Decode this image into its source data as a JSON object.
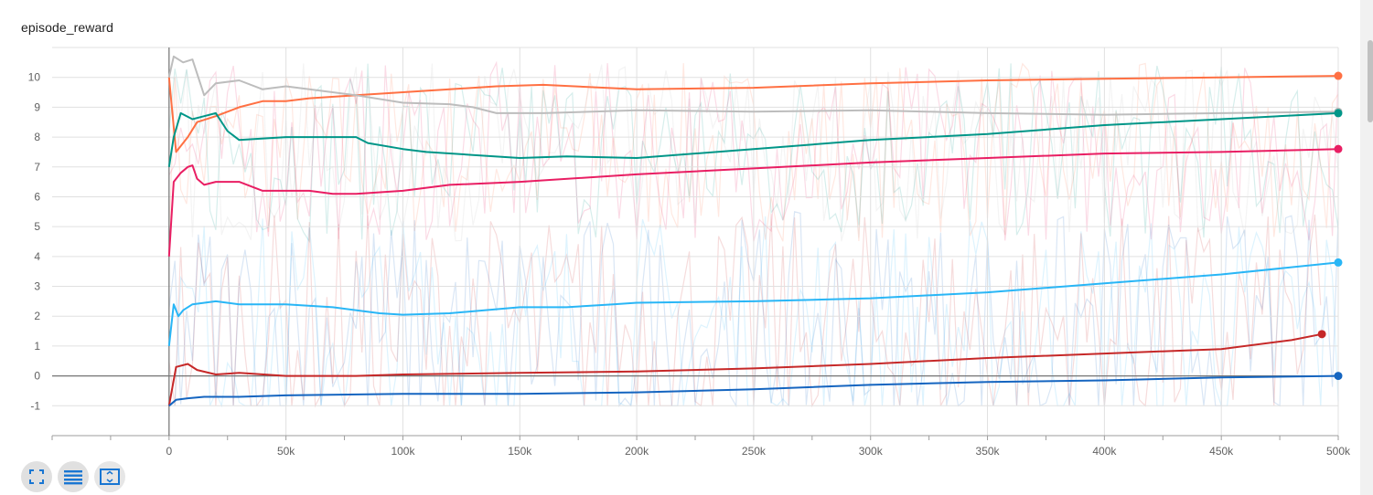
{
  "card": {
    "title": "episode_reward"
  },
  "toolbar": [
    {
      "name": "fullscreen-button",
      "icon": "expand-icon"
    },
    {
      "name": "toggle-log-button",
      "icon": "lines-icon"
    },
    {
      "name": "fit-domain-button",
      "icon": "fit-domain-icon"
    }
  ],
  "colors": {
    "axis": "#9e9e9e",
    "grid": "#e0e0e0",
    "tick": "#616161",
    "toolbar_icon": "#1976d2"
  },
  "chart_data": {
    "type": "line",
    "title": "episode_reward",
    "xlabel": "",
    "ylabel": "",
    "xlim": [
      -50000,
      500000
    ],
    "ylim": [
      -2,
      11
    ],
    "x_ticks": [
      0,
      50000,
      100000,
      150000,
      200000,
      250000,
      300000,
      350000,
      400000,
      450000,
      500000
    ],
    "x_tick_labels": [
      "0",
      "50k",
      "100k",
      "150k",
      "200k",
      "250k",
      "300k",
      "350k",
      "400k",
      "450k",
      "500k"
    ],
    "y_ticks": [
      -1,
      0,
      1,
      2,
      3,
      4,
      5,
      6,
      7,
      8,
      9,
      10
    ],
    "y_tick_labels": [
      "-1",
      "0",
      "1",
      "2",
      "3",
      "4",
      "5",
      "6",
      "7",
      "8",
      "9",
      "10"
    ],
    "grid": true,
    "legend": "none",
    "series": [
      {
        "color": "#ff7043",
        "x": [
          0,
          3000,
          8000,
          12000,
          20000,
          30000,
          40000,
          50000,
          60000,
          80000,
          100000,
          120000,
          140000,
          160000,
          200000,
          250000,
          300000,
          350000,
          400000,
          450000,
          500000
        ],
        "y": [
          10.0,
          7.5,
          8.0,
          8.5,
          8.7,
          9.0,
          9.2,
          9.2,
          9.3,
          9.4,
          9.5,
          9.6,
          9.7,
          9.75,
          9.6,
          9.65,
          9.8,
          9.9,
          9.95,
          10.0,
          10.05
        ]
      },
      {
        "color": "#bdbdbd",
        "x": [
          0,
          2000,
          6000,
          10000,
          15000,
          20000,
          30000,
          40000,
          50000,
          60000,
          80000,
          100000,
          120000,
          130000,
          140000,
          160000,
          200000,
          250000,
          300000,
          350000,
          400000,
          450000,
          500000
        ],
        "y": [
          10.0,
          10.7,
          10.5,
          10.6,
          9.4,
          9.8,
          9.9,
          9.6,
          9.7,
          9.6,
          9.4,
          9.15,
          9.1,
          9.0,
          8.8,
          8.8,
          8.9,
          8.85,
          8.9,
          8.8,
          8.75,
          8.8,
          8.85
        ]
      },
      {
        "color": "#009688",
        "x": [
          0,
          2000,
          5000,
          10000,
          15000,
          20000,
          25000,
          30000,
          50000,
          80000,
          85000,
          100000,
          110000,
          130000,
          150000,
          170000,
          200000,
          250000,
          300000,
          350000,
          400000,
          450000,
          500000
        ],
        "y": [
          7.0,
          8.0,
          8.8,
          8.6,
          8.7,
          8.8,
          8.2,
          7.9,
          8.0,
          8.0,
          7.8,
          7.6,
          7.5,
          7.4,
          7.3,
          7.35,
          7.3,
          7.6,
          7.9,
          8.1,
          8.4,
          8.6,
          8.8
        ]
      },
      {
        "color": "#e91e63",
        "x": [
          0,
          2000,
          5000,
          8000,
          10000,
          12000,
          15000,
          20000,
          30000,
          40000,
          50000,
          60000,
          70000,
          80000,
          100000,
          120000,
          150000,
          200000,
          250000,
          300000,
          350000,
          400000,
          450000,
          500000
        ],
        "y": [
          4.0,
          6.5,
          6.8,
          7.0,
          7.05,
          6.6,
          6.4,
          6.5,
          6.5,
          6.2,
          6.2,
          6.2,
          6.1,
          6.1,
          6.2,
          6.4,
          6.5,
          6.75,
          6.95,
          7.15,
          7.3,
          7.45,
          7.5,
          7.6
        ]
      },
      {
        "color": "#29b6f6",
        "x": [
          0,
          2000,
          4000,
          6000,
          10000,
          20000,
          30000,
          50000,
          70000,
          90000,
          100000,
          120000,
          150000,
          170000,
          190000,
          200000,
          250000,
          300000,
          350000,
          400000,
          450000,
          500000
        ],
        "y": [
          1.0,
          2.4,
          2.0,
          2.2,
          2.4,
          2.5,
          2.4,
          2.4,
          2.3,
          2.1,
          2.05,
          2.1,
          2.3,
          2.3,
          2.4,
          2.45,
          2.5,
          2.6,
          2.8,
          3.1,
          3.4,
          3.8
        ]
      },
      {
        "color": "#c62828",
        "x": [
          0,
          3000,
          8000,
          12000,
          20000,
          30000,
          50000,
          80000,
          100000,
          150000,
          200000,
          250000,
          300000,
          350000,
          400000,
          450000,
          480000,
          493000
        ],
        "y": [
          -1.0,
          0.3,
          0.4,
          0.2,
          0.05,
          0.1,
          0.0,
          0.0,
          0.05,
          0.1,
          0.15,
          0.25,
          0.4,
          0.6,
          0.75,
          0.9,
          1.2,
          1.4
        ]
      },
      {
        "color": "#1565c0",
        "x": [
          0,
          3000,
          8000,
          15000,
          30000,
          50000,
          100000,
          150000,
          200000,
          250000,
          300000,
          350000,
          400000,
          450000,
          500000
        ],
        "y": [
          -1.0,
          -0.8,
          -0.75,
          -0.7,
          -0.7,
          -0.65,
          -0.6,
          -0.6,
          -0.55,
          -0.45,
          -0.3,
          -0.2,
          -0.15,
          -0.05,
          0.0
        ]
      }
    ]
  }
}
